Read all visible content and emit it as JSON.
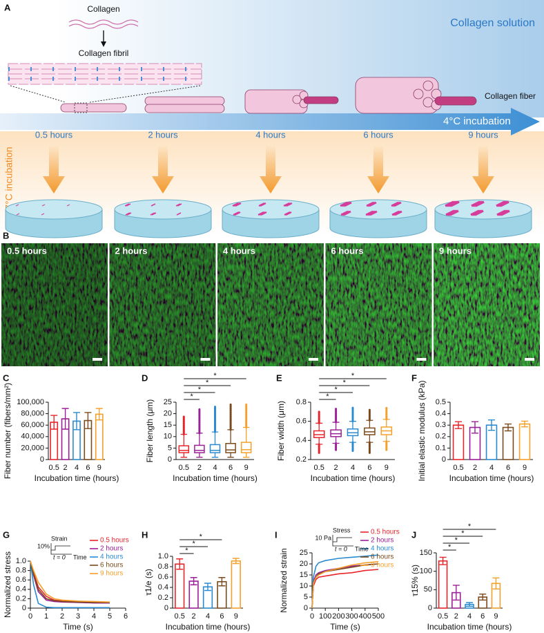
{
  "panel_a": {
    "label": "A",
    "collagen": "Collagen",
    "fibril": "Collagen fibril",
    "solution": "Collagen solution",
    "fiber": "Collagen fiber",
    "cold": "4°C incubation",
    "warm": "37°C incubation",
    "times": [
      "0.5 hours",
      "2 hours",
      "4 hours",
      "6 hours",
      "9 hours"
    ]
  },
  "panel_b": {
    "label": "B",
    "images": [
      "0.5 hours",
      "2 hours",
      "4 hours",
      "6 hours",
      "9 hours"
    ]
  },
  "chart_data": [
    {
      "type": "bar",
      "label": "C",
      "ylabel": "Fiber number (fibers/mm²)",
      "xlabel": "Incubation time (hours)",
      "categories": [
        "0.5",
        "2",
        "4",
        "6",
        "9"
      ],
      "values": [
        65000,
        71000,
        67000,
        68000,
        79000
      ],
      "errors": [
        12000,
        18000,
        15000,
        14000,
        10000
      ],
      "colors": [
        "#e8242a",
        "#9b1f96",
        "#2a8ad0",
        "#7a4a1c",
        "#f5a02a"
      ],
      "ylim": [
        0,
        100000
      ],
      "yticks": [
        0,
        {
          "value": 20000,
          "label": "20,000"
        },
        {
          "value": 40000,
          "label": "40,000"
        },
        {
          "value": 60000,
          "label": "60,000"
        },
        {
          "value": 80000,
          "label": "80,000"
        },
        {
          "value": 100000,
          "label": "100,000"
        }
      ]
    },
    {
      "type": "box",
      "label": "D",
      "ylabel": "Fiber length (μm)",
      "xlabel": "Incubation time (hours)",
      "categories": [
        "0.5",
        "2",
        "4",
        "6",
        "9"
      ],
      "colors": [
        "#e8242a",
        "#9b1f96",
        "#2a8ad0",
        "#7a4a1c",
        "#f5a02a"
      ],
      "whisker_low": [
        1,
        1,
        1,
        1,
        1
      ],
      "q1": [
        3,
        3,
        3,
        3,
        3
      ],
      "median": [
        4,
        4,
        4,
        4.2,
        4.3
      ],
      "q3": [
        6,
        6.2,
        6.5,
        7,
        7.5
      ],
      "whisker_high": [
        11,
        11.5,
        12,
        13,
        14
      ],
      "max": [
        19,
        22,
        23,
        24,
        24
      ],
      "ylim": [
        0,
        25
      ],
      "yticks": [
        0,
        5,
        10,
        15,
        20,
        25
      ],
      "significance": [
        {
          "between": [
            "0.5",
            "2"
          ],
          "label": "*"
        },
        {
          "between": [
            "0.5",
            "4"
          ],
          "label": "*"
        },
        {
          "between": [
            "0.5",
            "6"
          ],
          "label": "*"
        },
        {
          "between": [
            "0.5",
            "9"
          ],
          "label": "*"
        }
      ]
    },
    {
      "type": "box",
      "label": "E",
      "ylabel": "Fiber width (μm)",
      "xlabel": "Incubation time (hours)",
      "categories": [
        "0.5",
        "2",
        "4",
        "6",
        "9"
      ],
      "colors": [
        "#e8242a",
        "#9b1f96",
        "#2a8ad0",
        "#7a4a1c",
        "#f5a02a"
      ],
      "whisker_low": [
        0.36,
        0.37,
        0.38,
        0.38,
        0.39
      ],
      "q1": [
        0.43,
        0.44,
        0.45,
        0.46,
        0.46
      ],
      "median": [
        0.46,
        0.47,
        0.48,
        0.49,
        0.5
      ],
      "q3": [
        0.5,
        0.51,
        0.52,
        0.53,
        0.54
      ],
      "whisker_high": [
        0.58,
        0.59,
        0.6,
        0.61,
        0.62
      ],
      "min": [
        0.27,
        0.3,
        0.29,
        0.27,
        0.3
      ],
      "max": [
        0.7,
        0.73,
        0.75,
        0.72,
        0.75
      ],
      "ylim": [
        0.2,
        0.8
      ],
      "yticks": [
        0.2,
        0.4,
        0.6,
        0.8
      ],
      "significance": [
        {
          "between": [
            "0.5",
            "2"
          ],
          "label": "*"
        },
        {
          "between": [
            "0.5",
            "4"
          ],
          "label": "*"
        },
        {
          "between": [
            "0.5",
            "6"
          ],
          "label": "*"
        },
        {
          "between": [
            "0.5",
            "9"
          ],
          "label": "*"
        }
      ]
    },
    {
      "type": "bar",
      "label": "F",
      "ylabel": "Initial elastic modulus (kPa)",
      "xlabel": "Incubation time (hours)",
      "categories": [
        "0.5",
        "2",
        "4",
        "6",
        "9"
      ],
      "values": [
        0.3,
        0.28,
        0.3,
        0.28,
        0.31
      ],
      "errors": [
        0.03,
        0.05,
        0.045,
        0.03,
        0.025
      ],
      "colors": [
        "#e8242a",
        "#9b1f96",
        "#2a8ad0",
        "#7a4a1c",
        "#f5a02a"
      ],
      "ylim": [
        0,
        0.5
      ],
      "yticks": [
        0,
        0.1,
        0.2,
        0.3,
        0.4,
        0.5
      ]
    },
    {
      "type": "line",
      "label": "G",
      "ylabel": "Normalized stress",
      "xlabel": "Time (s)",
      "x": [
        0,
        0.2,
        0.5,
        1,
        1.5,
        2,
        3,
        4,
        5
      ],
      "series": [
        {
          "name": "0.5 hours",
          "color": "#e8242a",
          "values": [
            1,
            0.75,
            0.45,
            0.25,
            0.17,
            0.15,
            0.14,
            0.13,
            0.12
          ]
        },
        {
          "name": "2 hours",
          "color": "#9b1f96",
          "values": [
            1,
            0.7,
            0.35,
            0.17,
            0.14,
            0.13,
            0.12,
            0.11,
            0.11
          ]
        },
        {
          "name": "4 hours",
          "color": "#2a8ad0",
          "values": [
            1,
            0.5,
            0.1,
            0.02,
            0.01,
            0.01,
            0.01,
            0.01,
            0.01
          ]
        },
        {
          "name": "6 hours",
          "color": "#7a4a1c",
          "values": [
            1,
            0.72,
            0.4,
            0.2,
            0.16,
            0.14,
            0.13,
            0.12,
            0.12
          ]
        },
        {
          "name": "9 hours",
          "color": "#f5a02a",
          "values": [
            1,
            0.8,
            0.55,
            0.3,
            0.2,
            0.17,
            0.15,
            0.14,
            0.13
          ]
        }
      ],
      "xlim": [
        0,
        6
      ],
      "xticks": [
        0,
        1,
        2,
        3,
        4,
        5,
        6
      ],
      "ylim": [
        0,
        1
      ],
      "yticks": [
        0,
        0.2,
        0.4,
        0.6,
        0.8,
        {
          "value": 1,
          "label": "1.0"
        }
      ],
      "inset": {
        "quantity": "Strain",
        "scale": "10%",
        "start": "t = 0",
        "axis": "Time"
      }
    },
    {
      "type": "bar",
      "label": "H",
      "ylabel": "τ1/e (s)",
      "xlabel": "Incubation time (hours)",
      "categories": [
        "0.5",
        "2",
        "4",
        "6",
        "9"
      ],
      "values": [
        0.85,
        0.52,
        0.41,
        0.51,
        0.91
      ],
      "errors": [
        0.1,
        0.07,
        0.07,
        0.08,
        0.05
      ],
      "colors": [
        "#e8242a",
        "#9b1f96",
        "#2a8ad0",
        "#7a4a1c",
        "#f5a02a"
      ],
      "ylim": [
        0,
        1
      ],
      "yticks": [
        0,
        0.2,
        0.4,
        0.6,
        0.8,
        {
          "value": 1,
          "label": "1.0"
        }
      ],
      "significance": [
        {
          "between": [
            "0.5",
            "2"
          ],
          "label": "*"
        },
        {
          "between": [
            "0.5",
            "4"
          ],
          "label": "*"
        },
        {
          "between": [
            "0.5",
            "6"
          ],
          "label": "*"
        }
      ]
    },
    {
      "type": "line",
      "label": "I",
      "ylabel": "Normalized strain",
      "xlabel": "Time (s)",
      "x": [
        0,
        10,
        30,
        50,
        100,
        200,
        300,
        400,
        500
      ],
      "series": [
        {
          "name": "0.5 hours",
          "color": "#e8242a",
          "values": [
            0,
            10,
            13,
            14,
            14.5,
            15.5,
            16,
            17,
            17.5
          ]
        },
        {
          "name": "2 hours",
          "color": "#9b1f96",
          "values": [
            0,
            12,
            15,
            16,
            17,
            18,
            19,
            19.5,
            20
          ]
        },
        {
          "name": "4 hours",
          "color": "#2a8ad0",
          "values": [
            0,
            14,
            19,
            20.5,
            21.5,
            22.5,
            23,
            23.5,
            24
          ]
        },
        {
          "name": "6 hours",
          "color": "#7a4a1c",
          "values": [
            0,
            11,
            14,
            15.5,
            16.5,
            17.5,
            18.5,
            19.5,
            20
          ]
        },
        {
          "name": "9 hours",
          "color": "#f5a02a",
          "values": [
            0,
            11,
            14,
            15,
            16.5,
            18,
            19.5,
            20.5,
            21
          ]
        }
      ],
      "xlim": [
        0,
        500
      ],
      "xticks": [
        0,
        100,
        200,
        300,
        400,
        500
      ],
      "ylim": [
        0,
        25
      ],
      "yticks": [
        0,
        5,
        10,
        15,
        20,
        25
      ],
      "inset": {
        "quantity": "Stress",
        "scale": "10 Pa",
        "start": "t = 0",
        "axis": "Time"
      }
    },
    {
      "type": "bar",
      "label": "J",
      "ylabel": "τ15% (s)",
      "xlabel": "Incubation time (hours)",
      "categories": [
        "0.5",
        "2",
        "4",
        "6",
        "9"
      ],
      "values": [
        128,
        42,
        10,
        30,
        67
      ],
      "errors": [
        10,
        20,
        5,
        8,
        15
      ],
      "colors": [
        "#e8242a",
        "#9b1f96",
        "#2a8ad0",
        "#7a4a1c",
        "#f5a02a"
      ],
      "ylim": [
        0,
        150
      ],
      "yticks": [
        0,
        50,
        100,
        150
      ],
      "significance": [
        {
          "between": [
            "0.5",
            "2"
          ],
          "label": "*"
        },
        {
          "between": [
            "0.5",
            "4"
          ],
          "label": "*"
        },
        {
          "between": [
            "0.5",
            "6"
          ],
          "label": "*"
        },
        {
          "between": [
            "0.5",
            "9"
          ],
          "label": "*"
        }
      ]
    }
  ]
}
